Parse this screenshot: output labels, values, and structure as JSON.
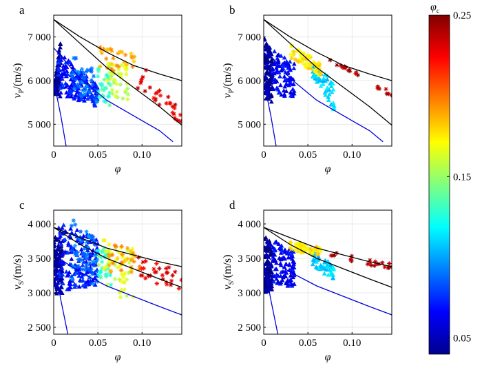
{
  "figure": {
    "colorbar": {
      "title": "φ",
      "title_sub": "c",
      "range": [
        0.04,
        0.25
      ],
      "ticks": [
        "0.25",
        "0.15",
        "0.05"
      ],
      "tick_values": [
        0.25,
        0.15,
        0.05
      ]
    }
  },
  "chart_data": [
    {
      "panel": "a",
      "type": "scatter",
      "xlabel": "φ",
      "ylabel_main": "v",
      "ylabel_sub": "P",
      "ylabel_unit": "/(m/s)",
      "xlim": [
        0,
        0.145
      ],
      "ylim": [
        4500,
        7500
      ],
      "xticks": [
        0,
        0.05,
        0.1
      ],
      "xtick_labels": [
        "0",
        "0.05",
        "0.10"
      ],
      "yticks": [
        5000,
        6000,
        7000
      ],
      "ytick_labels": [
        "5 000",
        "6 000",
        "7 000"
      ],
      "bounds": {
        "upper": [
          [
            0,
            7400
          ],
          [
            0.03,
            7000
          ],
          [
            0.06,
            6650
          ],
          [
            0.09,
            6350
          ],
          [
            0.12,
            6150
          ],
          [
            0.145,
            6000
          ]
        ],
        "middle": [
          [
            0,
            7400
          ],
          [
            0.03,
            6850
          ],
          [
            0.06,
            6300
          ],
          [
            0.09,
            5850
          ],
          [
            0.12,
            5400
          ],
          [
            0.145,
            4980
          ]
        ],
        "lower": [
          [
            0,
            6750
          ],
          [
            0.03,
            6050
          ],
          [
            0.06,
            5550
          ],
          [
            0.09,
            5200
          ],
          [
            0.12,
            4850
          ],
          [
            0.135,
            4600
          ]
        ],
        "steep": [
          [
            0,
            6000
          ],
          [
            0.008,
            5200
          ],
          [
            0.014,
            4500
          ]
        ]
      },
      "clusters": [
        {
          "shape": "triangle",
          "phi_c": 0.045,
          "n": 110,
          "x": [
            0.0,
            0.008
          ],
          "y_top": [
            5800,
            7000
          ],
          "y_bot": [
            5700,
            5600
          ]
        },
        {
          "shape": "triangle",
          "phi_c": 0.07,
          "n": 160,
          "x": [
            0.005,
            0.05
          ],
          "y_top": [
            6700,
            5900
          ],
          "y_bot": [
            5700,
            5400
          ]
        },
        {
          "shape": "star",
          "phi_c": 0.09,
          "n": 50,
          "x": [
            0.02,
            0.05
          ],
          "y_top": [
            6600,
            6200
          ],
          "y_bot": [
            5700,
            5500
          ]
        },
        {
          "shape": "star",
          "phi_c": 0.13,
          "n": 30,
          "x": [
            0.05,
            0.065
          ],
          "y_top": [
            6300,
            6100
          ],
          "y_bot": [
            5600,
            5400
          ]
        },
        {
          "shape": "star",
          "phi_c": 0.16,
          "n": 40,
          "x": [
            0.06,
            0.085
          ],
          "y_top": [
            6500,
            6300
          ],
          "y_bot": [
            5700,
            5500
          ]
        },
        {
          "shape": "star",
          "phi_c": 0.19,
          "n": 30,
          "x": [
            0.05,
            0.095
          ],
          "y_top": [
            6800,
            6600
          ],
          "y_bot": [
            6300,
            6100
          ]
        },
        {
          "shape": "star",
          "phi_c": 0.23,
          "n": 30,
          "x": [
            0.095,
            0.145
          ],
          "y_top": [
            6500,
            5300
          ],
          "y_bot": [
            5800,
            5000
          ]
        }
      ]
    },
    {
      "panel": "b",
      "type": "scatter",
      "xlabel": "φ",
      "ylabel_main": "v",
      "ylabel_sub": "P",
      "ylabel_unit": "/(m/s)",
      "xlim": [
        0,
        0.145
      ],
      "ylim": [
        4500,
        7500
      ],
      "xticks": [
        0,
        0.05,
        0.1
      ],
      "xtick_labels": [
        "0",
        "0.05",
        "0.10"
      ],
      "yticks": [
        5000,
        6000,
        7000
      ],
      "ytick_labels": [
        "5 000",
        "6 000",
        "7 000"
      ],
      "bounds": {
        "upper": [
          [
            0,
            7400
          ],
          [
            0.03,
            7000
          ],
          [
            0.06,
            6650
          ],
          [
            0.09,
            6350
          ],
          [
            0.12,
            6150
          ],
          [
            0.145,
            6000
          ]
        ],
        "middle": [
          [
            0,
            7400
          ],
          [
            0.03,
            6850
          ],
          [
            0.06,
            6300
          ],
          [
            0.09,
            5850
          ],
          [
            0.12,
            5400
          ],
          [
            0.145,
            4980
          ]
        ],
        "lower": [
          [
            0,
            6750
          ],
          [
            0.03,
            6050
          ],
          [
            0.06,
            5550
          ],
          [
            0.09,
            5200
          ],
          [
            0.12,
            4850
          ],
          [
            0.135,
            4600
          ]
        ],
        "steep": [
          [
            0,
            6000
          ],
          [
            0.008,
            5200
          ],
          [
            0.014,
            4500
          ]
        ]
      },
      "clusters": [
        {
          "shape": "triangle",
          "phi_c": 0.045,
          "n": 120,
          "x": [
            0.0,
            0.01
          ],
          "y_top": [
            7100,
            6600
          ],
          "y_bot": [
            5600,
            5500
          ]
        },
        {
          "shape": "triangle",
          "phi_c": 0.065,
          "n": 90,
          "x": [
            0.01,
            0.035
          ],
          "y_top": [
            6700,
            6400
          ],
          "y_bot": [
            5800,
            5450
          ]
        },
        {
          "shape": "triangle",
          "phi_c": 0.11,
          "n": 60,
          "x": [
            0.055,
            0.08
          ],
          "y_top": [
            6400,
            6000
          ],
          "y_bot": [
            6100,
            5300
          ]
        },
        {
          "shape": "star",
          "phi_c": 0.175,
          "n": 60,
          "x": [
            0.03,
            0.065
          ],
          "y_top": [
            6850,
            6400
          ],
          "y_bot": [
            6500,
            6100
          ]
        },
        {
          "shape": "star",
          "phi_c": 0.24,
          "n": 22,
          "x": [
            0.075,
            0.145
          ],
          "y_top": [
            6550,
            5750
          ],
          "y_bot": [
            6450,
            5600
          ]
        }
      ]
    },
    {
      "panel": "c",
      "type": "scatter",
      "xlabel": "φ",
      "ylabel_main": "v",
      "ylabel_sub": "S",
      "ylabel_unit": "/(m/s)",
      "xlim": [
        0,
        0.145
      ],
      "ylim": [
        2400,
        4200
      ],
      "xticks": [
        0,
        0.05,
        0.1
      ],
      "xtick_labels": [
        "0",
        "0.05",
        "0.10"
      ],
      "yticks": [
        2500,
        3000,
        3500,
        4000
      ],
      "ytick_labels": [
        "2 500",
        "3 000",
        "3 500",
        "4 000"
      ],
      "bounds": {
        "upper": [
          [
            0,
            3950
          ],
          [
            0.03,
            3800
          ],
          [
            0.06,
            3650
          ],
          [
            0.09,
            3550
          ],
          [
            0.12,
            3450
          ],
          [
            0.145,
            3380
          ]
        ],
        "middle": [
          [
            0,
            3950
          ],
          [
            0.03,
            3700
          ],
          [
            0.06,
            3500
          ],
          [
            0.09,
            3350
          ],
          [
            0.12,
            3200
          ],
          [
            0.145,
            3080
          ]
        ],
        "lower": [
          [
            0,
            3550
          ],
          [
            0.03,
            3300
          ],
          [
            0.06,
            3100
          ],
          [
            0.09,
            2950
          ],
          [
            0.12,
            2800
          ],
          [
            0.145,
            2680
          ]
        ],
        "steep": [
          [
            0,
            3450
          ],
          [
            0.008,
            2900
          ],
          [
            0.016,
            2400
          ]
        ]
      },
      "clusters": [
        {
          "shape": "triangle",
          "phi_c": 0.045,
          "n": 120,
          "x": [
            0.0,
            0.01
          ],
          "y_top": [
            3850,
            3700
          ],
          "y_bot": [
            2950,
            3000
          ]
        },
        {
          "shape": "triangle",
          "phi_c": 0.07,
          "n": 170,
          "x": [
            0.005,
            0.05
          ],
          "y_top": [
            4050,
            3800
          ],
          "y_bot": [
            3000,
            3100
          ]
        },
        {
          "shape": "star",
          "phi_c": 0.09,
          "n": 60,
          "x": [
            0.02,
            0.05
          ],
          "y_top": [
            4100,
            3800
          ],
          "y_bot": [
            3200,
            3100
          ]
        },
        {
          "shape": "star",
          "phi_c": 0.13,
          "n": 30,
          "x": [
            0.05,
            0.065
          ],
          "y_top": [
            3700,
            3600
          ],
          "y_bot": [
            3200,
            3100
          ]
        },
        {
          "shape": "star",
          "phi_c": 0.165,
          "n": 50,
          "x": [
            0.05,
            0.09
          ],
          "y_top": [
            3900,
            3650
          ],
          "y_bot": [
            3000,
            2900
          ]
        },
        {
          "shape": "star",
          "phi_c": 0.19,
          "n": 30,
          "x": [
            0.06,
            0.1
          ],
          "y_top": [
            3700,
            3650
          ],
          "y_bot": [
            3300,
            3300
          ]
        },
        {
          "shape": "star",
          "phi_c": 0.23,
          "n": 30,
          "x": [
            0.095,
            0.145
          ],
          "y_top": [
            3650,
            3300
          ],
          "y_bot": [
            3200,
            3050
          ]
        }
      ]
    },
    {
      "panel": "d",
      "type": "scatter",
      "xlabel": "φ",
      "ylabel_main": "v",
      "ylabel_sub": "S",
      "ylabel_unit": "/(m/s)",
      "xlim": [
        0,
        0.145
      ],
      "ylim": [
        2400,
        4200
      ],
      "xticks": [
        0,
        0.05,
        0.1
      ],
      "xtick_labels": [
        "0",
        "0.05",
        "0.10"
      ],
      "yticks": [
        2500,
        3000,
        3500,
        4000
      ],
      "ytick_labels": [
        "2 500",
        "3 000",
        "3 500",
        "4 000"
      ],
      "bounds": {
        "upper": [
          [
            0,
            3950
          ],
          [
            0.03,
            3800
          ],
          [
            0.06,
            3650
          ],
          [
            0.09,
            3550
          ],
          [
            0.12,
            3450
          ],
          [
            0.145,
            3380
          ]
        ],
        "middle": [
          [
            0,
            3950
          ],
          [
            0.03,
            3700
          ],
          [
            0.06,
            3500
          ],
          [
            0.09,
            3350
          ],
          [
            0.12,
            3200
          ],
          [
            0.145,
            3080
          ]
        ],
        "lower": [
          [
            0,
            3550
          ],
          [
            0.03,
            3300
          ],
          [
            0.06,
            3100
          ],
          [
            0.09,
            2950
          ],
          [
            0.12,
            2800
          ],
          [
            0.145,
            2680
          ]
        ],
        "steep": [
          [
            0,
            3450
          ],
          [
            0.008,
            2900
          ],
          [
            0.016,
            2400
          ]
        ]
      },
      "clusters": [
        {
          "shape": "triangle",
          "phi_c": 0.045,
          "n": 120,
          "x": [
            0.0,
            0.01
          ],
          "y_top": [
            3850,
            3700
          ],
          "y_bot": [
            3000,
            3050
          ]
        },
        {
          "shape": "triangle",
          "phi_c": 0.065,
          "n": 100,
          "x": [
            0.01,
            0.035
          ],
          "y_top": [
            3800,
            3600
          ],
          "y_bot": [
            3100,
            3100
          ]
        },
        {
          "shape": "triangle",
          "phi_c": 0.11,
          "n": 60,
          "x": [
            0.055,
            0.08
          ],
          "y_top": [
            3600,
            3400
          ],
          "y_bot": [
            3400,
            3150
          ]
        },
        {
          "shape": "star",
          "phi_c": 0.175,
          "n": 60,
          "x": [
            0.03,
            0.065
          ],
          "y_top": [
            3750,
            3650
          ],
          "y_bot": [
            3600,
            3550
          ]
        },
        {
          "shape": "star",
          "phi_c": 0.24,
          "n": 22,
          "x": [
            0.075,
            0.145
          ],
          "y_top": [
            3600,
            3420
          ],
          "y_bot": [
            3500,
            3340
          ]
        }
      ]
    }
  ]
}
